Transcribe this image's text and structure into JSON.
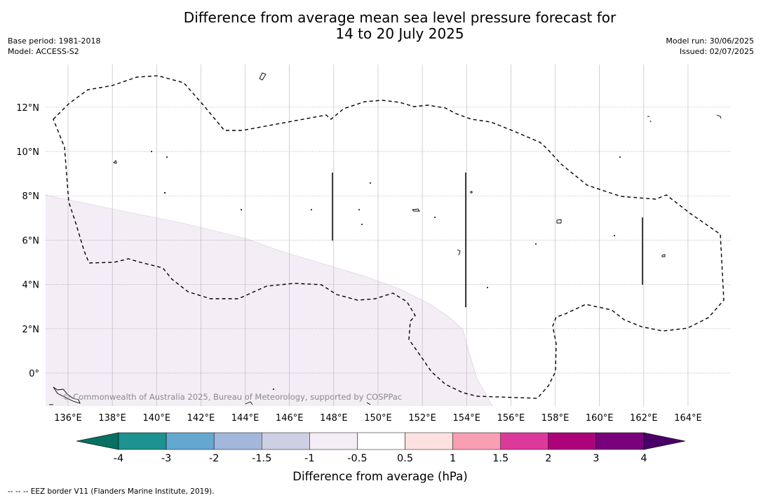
{
  "title": {
    "line1": "Difference from average mean sea level pressure forecast for",
    "line2": "14 to 20 July 2025"
  },
  "meta": {
    "base_period": "Base period: 1981-2018",
    "model": "Model: ACCESS-S2",
    "model_run": "Model run: 30/06/2025",
    "issued": "Issued: 02/07/2025"
  },
  "map": {
    "lon_labels": [
      "136°E",
      "138°E",
      "140°E",
      "142°E",
      "144°E",
      "146°E",
      "148°E",
      "150°E",
      "152°E",
      "154°E",
      "156°E",
      "158°E",
      "160°E",
      "162°E",
      "164°E"
    ],
    "lat_labels": [
      "12°N",
      "10°N",
      "8°N",
      "6°N",
      "4°N",
      "2°N",
      "0°"
    ],
    "lon_range": [
      135,
      166
    ],
    "lat_range": [
      -1.5,
      14
    ],
    "copyright": "© Commonwealth of Australia 2025, Bureau of Meteorology, supported by COSPPac",
    "anomaly_region": "-1 to -0.5 hPa",
    "anomaly_color": "#f4edf6"
  },
  "colorbar": {
    "title": "Difference from average (hPa)",
    "tick_labels": [
      "-4",
      "-3",
      "-2",
      "-1.5",
      "-1",
      "-0.5",
      "0.5",
      "1",
      "1.5",
      "2",
      "3",
      "4"
    ],
    "colors": [
      "#1c938f",
      "#64a8d0",
      "#a2b7db",
      "#cdcfe4",
      "#f4edf6",
      "#ffffff",
      "#fde1e0",
      "#f89fb4",
      "#dc399a",
      "#ac027a",
      "#7a017c"
    ],
    "extend_low_color": "#087062",
    "extend_high_color": "#4a0068"
  },
  "footnote": "--  --  -- EEZ border V11 (Flanders Marine Institute, 2019)."
}
